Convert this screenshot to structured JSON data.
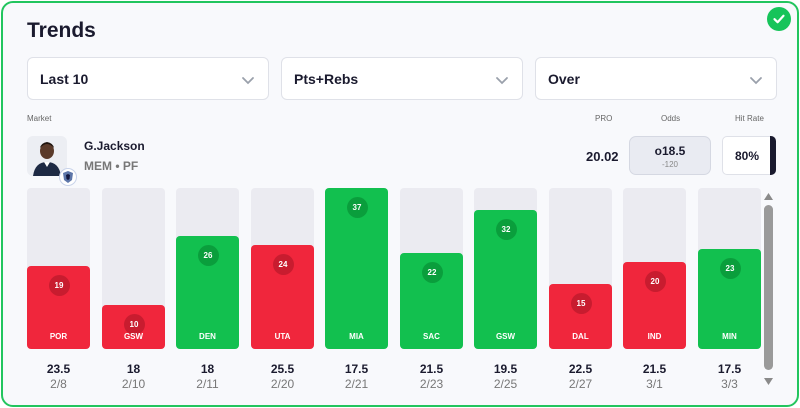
{
  "header": {
    "title": "Trends"
  },
  "filters": [
    {
      "label": "Last 10"
    },
    {
      "label": "Pts+Rebs"
    },
    {
      "label": "Over"
    }
  ],
  "labels": {
    "market": "Market",
    "pro": "PRO",
    "odds": "Odds",
    "hit_rate": "Hit Rate"
  },
  "player": {
    "name": "G.Jackson",
    "team_pos": "MEM • PF"
  },
  "stats": {
    "pro": "20.02",
    "odds_line": "o18.5",
    "odds_price": "-120",
    "hit_rate": "80%"
  },
  "colors": {
    "over": "#12c04f",
    "under": "#f0263c",
    "accent": "#22c55e"
  },
  "games": [
    {
      "opp": "POR",
      "value": 19,
      "line": "23.5",
      "date": "2/8",
      "hit": false
    },
    {
      "opp": "GSW",
      "value": 10,
      "line": "18",
      "date": "2/10",
      "hit": false
    },
    {
      "opp": "DEN",
      "value": 26,
      "line": "18",
      "date": "2/11",
      "hit": true
    },
    {
      "opp": "UTA",
      "value": 24,
      "line": "25.5",
      "date": "2/20",
      "hit": false
    },
    {
      "opp": "MIA",
      "value": 37,
      "line": "17.5",
      "date": "2/21",
      "hit": true
    },
    {
      "opp": "SAC",
      "value": 22,
      "line": "21.5",
      "date": "2/23",
      "hit": true
    },
    {
      "opp": "GSW",
      "value": 32,
      "line": "19.5",
      "date": "2/25",
      "hit": true
    },
    {
      "opp": "DAL",
      "value": 15,
      "line": "22.5",
      "date": "2/27",
      "hit": false
    },
    {
      "opp": "IND",
      "value": 20,
      "line": "21.5",
      "date": "3/1",
      "hit": false
    },
    {
      "opp": "MIN",
      "value": 23,
      "line": "17.5",
      "date": "3/3",
      "hit": true
    }
  ],
  "scale_max": 37
}
